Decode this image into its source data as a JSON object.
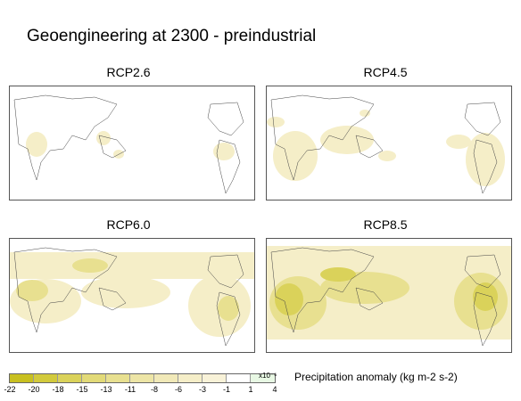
{
  "title": "Geoengineering at 2300 - preindustrial",
  "panels": [
    {
      "label": "RCP2.6"
    },
    {
      "label": "RCP4.5"
    },
    {
      "label": "RCP6.0"
    },
    {
      "label": "RCP8.5"
    }
  ],
  "colorbar": {
    "label": "Precipitation anomaly (kg m-2 s-2)",
    "exponent": "x10⁻⁶",
    "ticks": [
      "-22",
      "-20",
      "-18",
      "-15",
      "-13",
      "-11",
      "-8",
      "-6",
      "-3",
      "-1",
      "1",
      "4"
    ],
    "colors": [
      "#c8c020",
      "#d2ca3c",
      "#dad25a",
      "#e2da78",
      "#e8e090",
      "#ede5a6",
      "#f1e9b8",
      "#f5eec8",
      "#f8f2d8",
      "#ffffff",
      "#e8f8e4"
    ]
  }
}
